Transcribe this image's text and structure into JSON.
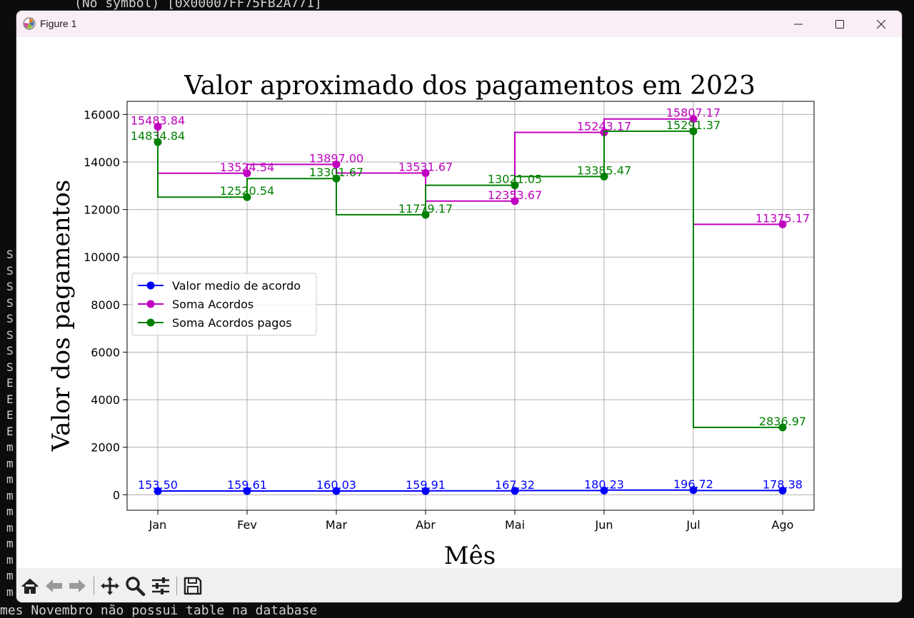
{
  "terminal": {
    "top_line": "(No symbol) [0x00007FF75FB2A771]",
    "bottom_line": "mes Novembro não possui table na database",
    "left_chars": [
      "S",
      "S",
      "S",
      "S",
      "S",
      "S",
      "S",
      "S",
      "E",
      "E",
      "E",
      "E",
      "m",
      "m",
      "m",
      "m",
      "m",
      "m",
      "m",
      "m",
      "m",
      "m"
    ]
  },
  "window": {
    "title": "Figure 1",
    "icon": "matplotlib-figure-icon",
    "buttons": [
      "minimize-icon",
      "maximize-icon",
      "close-icon"
    ]
  },
  "toolbar": {
    "tools": [
      "home-icon",
      "back-arrow-icon",
      "forward-arrow-icon",
      "pan-move-icon",
      "zoom-magnifier-icon",
      "configure-subplots-icon",
      "save-disk-icon"
    ]
  },
  "chart_data": {
    "type": "line",
    "drawstyle": "steps-pre",
    "title": "Valor aproximado dos pagamentos em 2023",
    "xlabel": "Mês",
    "ylabel": "Valor dos pagamentos",
    "categories": [
      "Jan",
      "Fev",
      "Mar",
      "Abr",
      "Mai",
      "Jun",
      "Jul",
      "Ago"
    ],
    "ylim": [
      -650,
      16550
    ],
    "yticks": [
      0,
      2000,
      4000,
      6000,
      8000,
      10000,
      12000,
      14000,
      16000
    ],
    "grid": true,
    "legend_position": "center-left",
    "series": [
      {
        "name": "Valor medio de acordo",
        "color": "#0000ff",
        "values": [
          153.5,
          159.61,
          160.03,
          159.91,
          167.32,
          180.23,
          196.72,
          178.38
        ],
        "labels": [
          "153.50",
          "159.61",
          "160.03",
          "159.91",
          "167.32",
          "180.23",
          "196.72",
          "178.38"
        ]
      },
      {
        "name": "Soma Acordos",
        "color": "#c000c0",
        "values": [
          15483.84,
          13524.54,
          13897.0,
          13531.67,
          12353.67,
          15243.17,
          15807.17,
          11375.17
        ],
        "labels": [
          "15483.84",
          "13524.54",
          "13897.00",
          "13531.67",
          "12353.67",
          "15243.17",
          "15807.17",
          "11375.17"
        ]
      },
      {
        "name": "Soma Acordos pagos",
        "color": "#008000",
        "values": [
          14834.84,
          12520.54,
          13301.67,
          11779.17,
          13021.05,
          13385.47,
          15291.37,
          2836.97
        ],
        "labels": [
          "14834.84",
          "12520.54",
          "13301.67",
          "11779.17",
          "13021.05",
          "13385.47",
          "15291.37",
          "2836.97"
        ]
      }
    ]
  }
}
